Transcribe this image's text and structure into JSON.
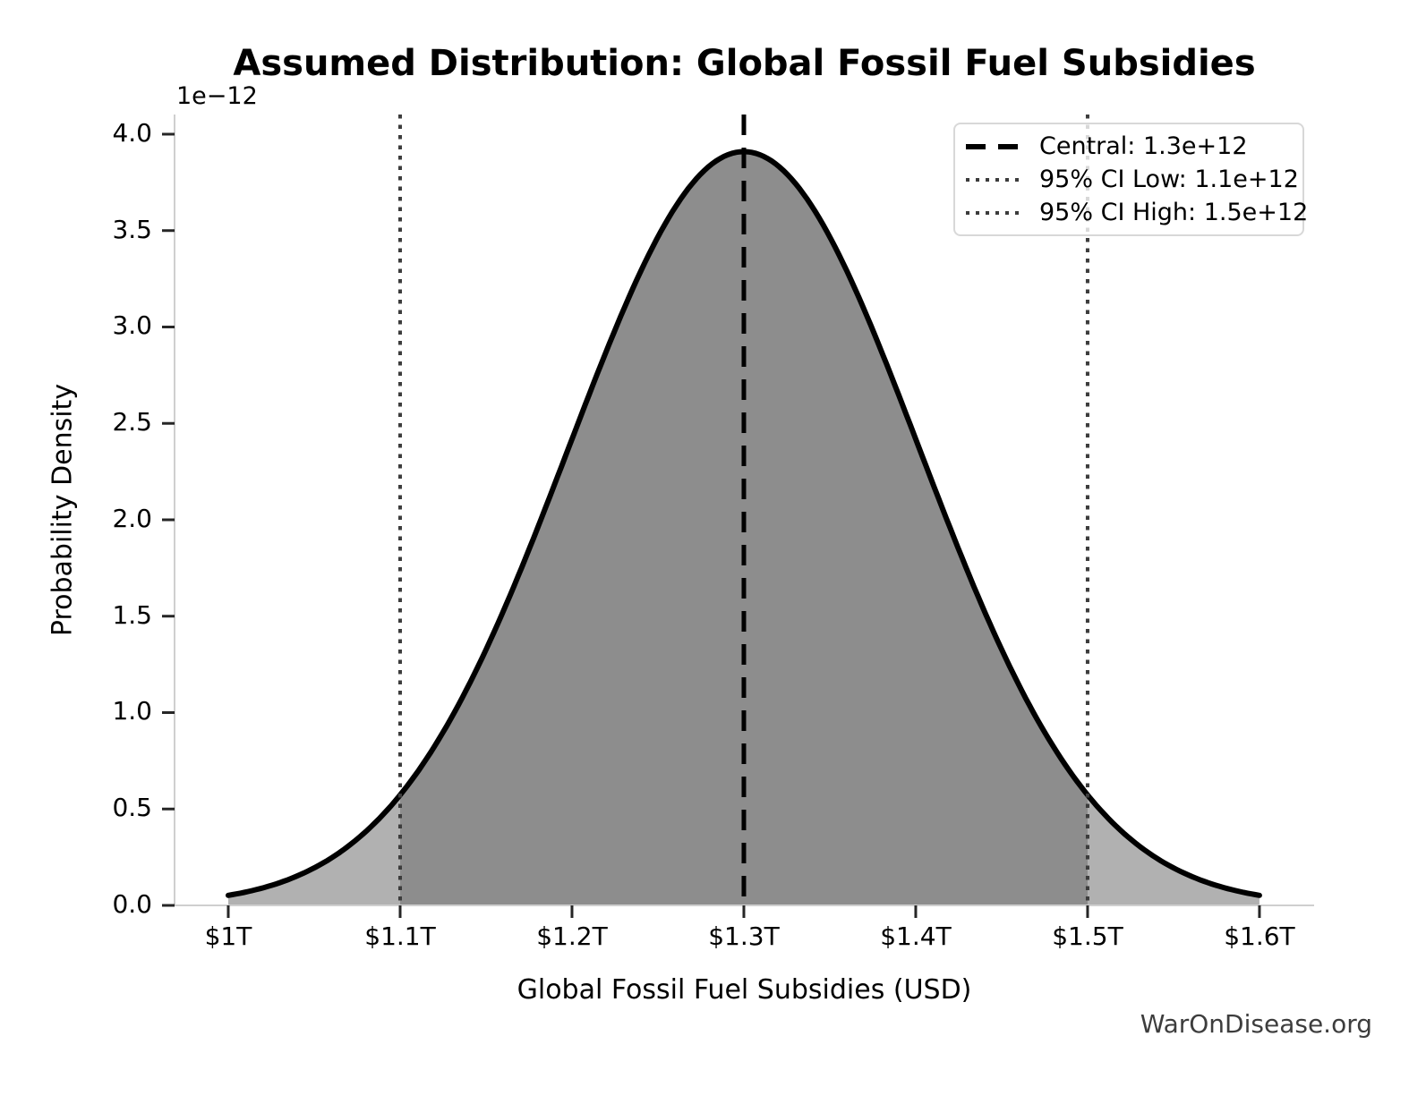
{
  "figure": {
    "watermark": "WarOnDisease.org"
  },
  "chart_data": {
    "type": "area",
    "title": "Assumed Distribution: Global Fossil Fuel Subsidies",
    "xlabel": "Global Fossil Fuel Subsidies (USD)",
    "ylabel": "Probability Density",
    "y_offset_label": "1e−12",
    "distribution": {
      "kind": "normal",
      "mean": 1300000000000.0,
      "sigma": 102040000000.0,
      "peak_density": 3.909e-12
    },
    "central": 1300000000000.0,
    "ci_low": 1100000000000.0,
    "ci_high": 1500000000000.0,
    "curve_x_start": 1000000000000.0,
    "curve_x_end": 1600000000000.0,
    "xlim": [
      968750000000.0,
      1631800000000.0
    ],
    "ylim": [
      0,
      4.102e-12
    ],
    "xticks": [
      1000000000000.0,
      1100000000000.0,
      1200000000000.0,
      1300000000000.0,
      1400000000000.0,
      1500000000000.0,
      1600000000000.0
    ],
    "xticklabels": [
      "$1T",
      "$1.1T",
      "$1.2T",
      "$1.3T",
      "$1.4T",
      "$1.5T",
      "$1.6T"
    ],
    "yticks": [
      0,
      5e-13,
      1e-12,
      1.5e-12,
      2e-12,
      2.5e-12,
      3e-12,
      3.5e-12,
      4e-12
    ],
    "yticklabels": [
      "0.0",
      "0.5",
      "1.0",
      "1.5",
      "2.0",
      "2.5",
      "3.0",
      "3.5",
      "4.0"
    ],
    "grid": false,
    "legend_position": "upper right",
    "legend": {
      "items": [
        {
          "label": "Central: 1.3e+12",
          "style": "dashed",
          "color": "#000000"
        },
        {
          "label": "95% CI Low: 1.1e+12",
          "style": "dotted",
          "color": "#3c3c3c"
        },
        {
          "label": "95% CI High: 1.5e+12",
          "style": "dotted",
          "color": "#3c3c3c"
        }
      ]
    },
    "colors": {
      "curve": "#000000",
      "tail_fill": "#b1b1b1",
      "ci_fill": "#8d8d8d",
      "central_line": "#000000",
      "ci_line": "#3c3c3c",
      "spine": "#cfcfcf",
      "tick": "#262626"
    }
  }
}
